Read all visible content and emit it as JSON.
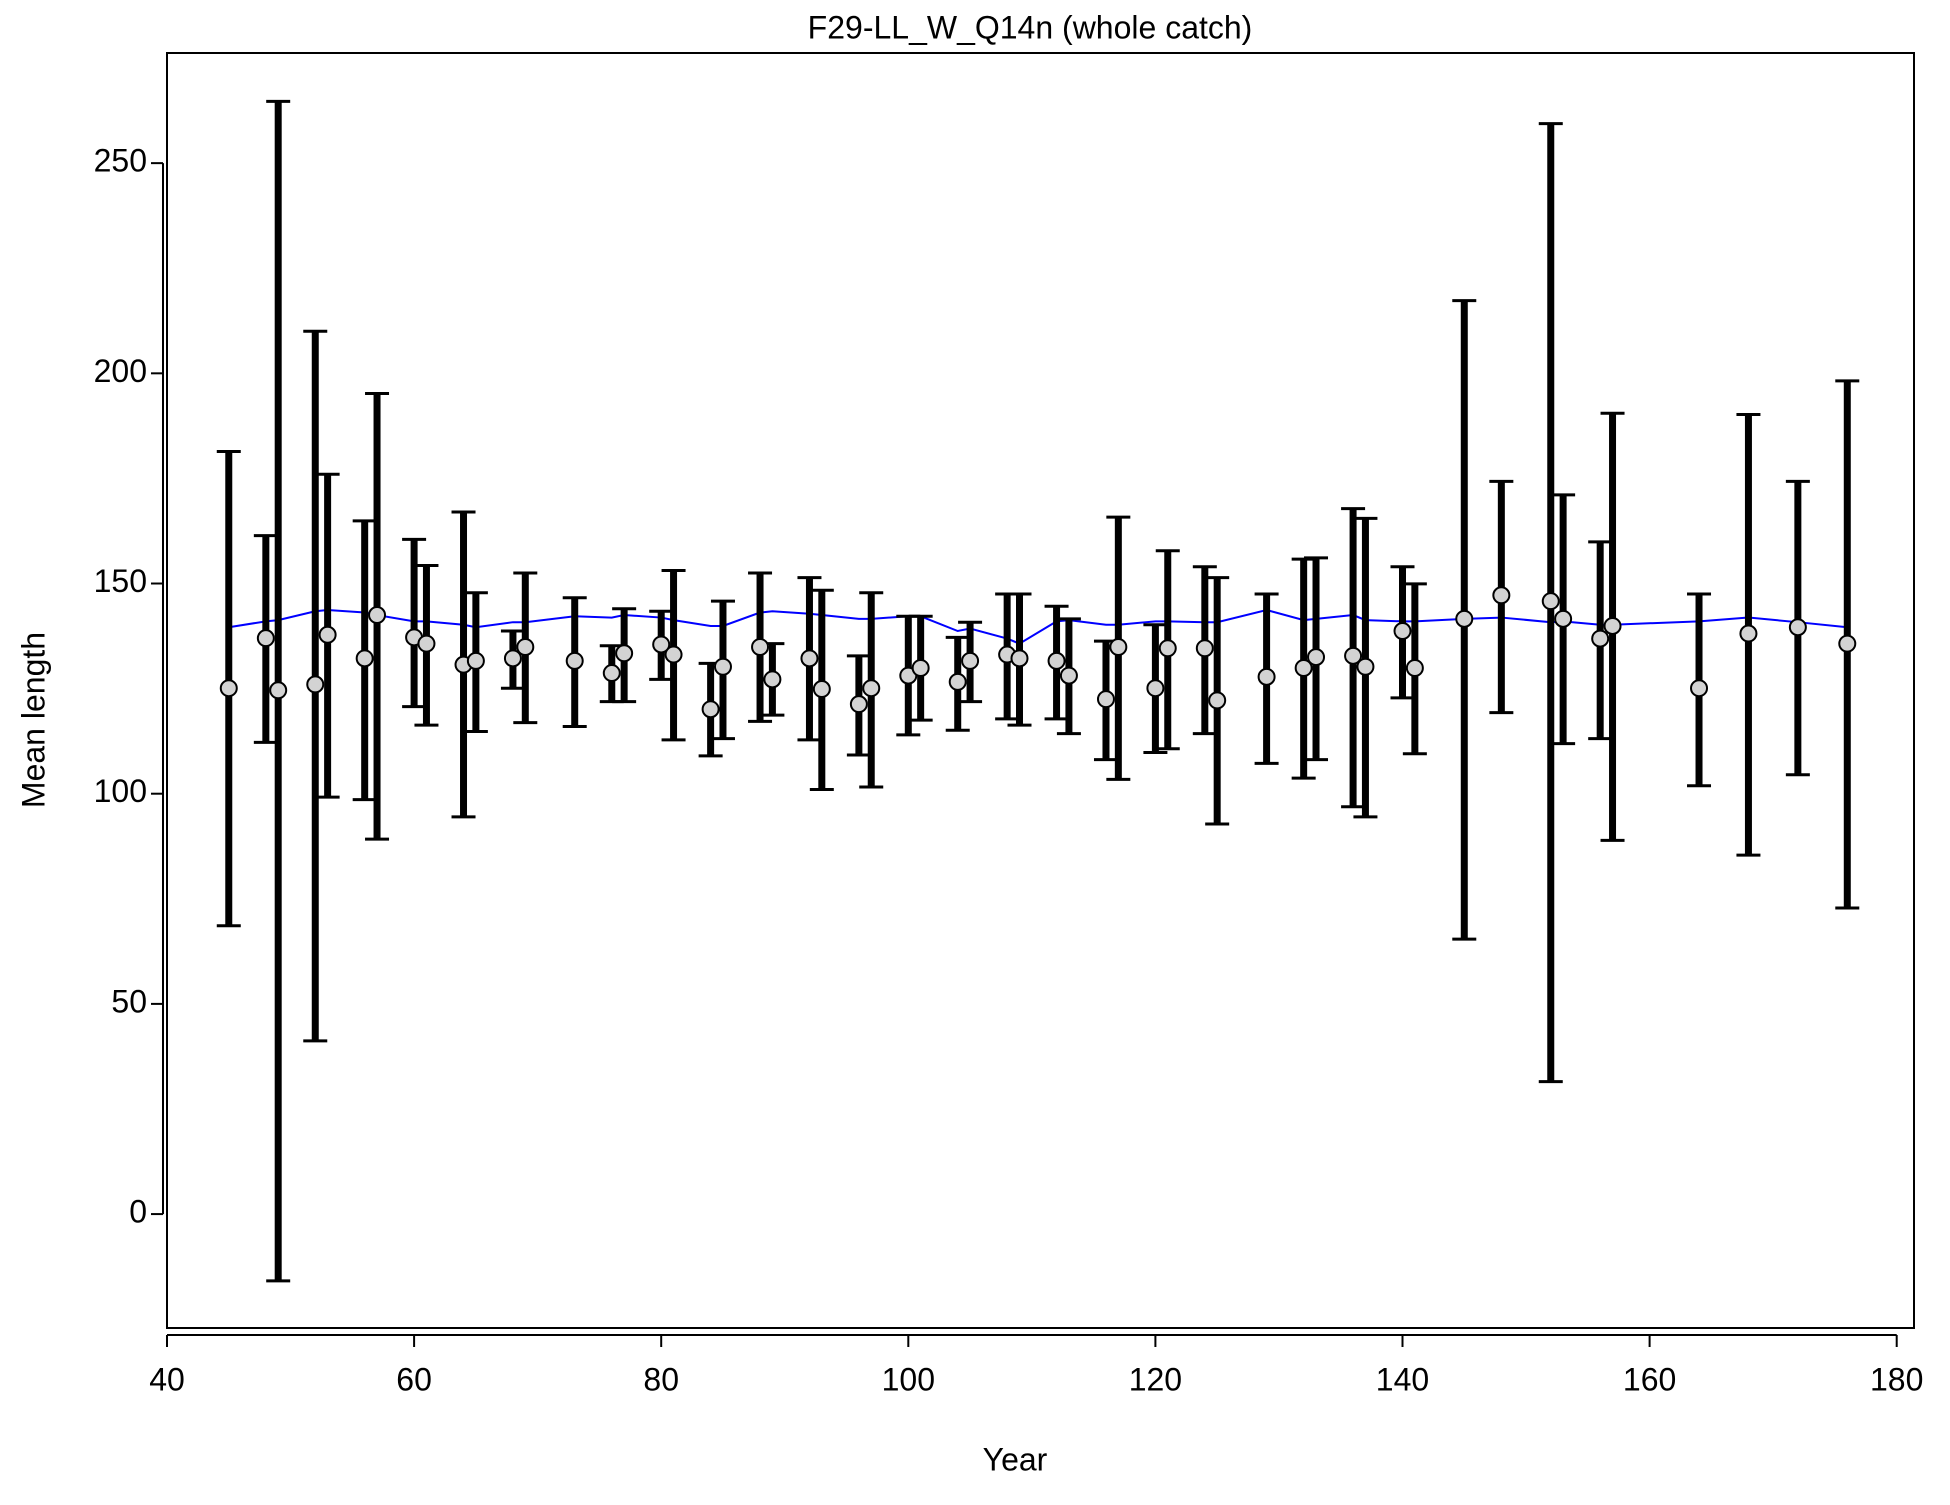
{
  "chart_data": {
    "type": "errorbar",
    "title": "F29-LL_W_Q14n (whole catch)",
    "x_label": "Year",
    "y_label": "Mean length",
    "xlim": [
      40,
      181.4
    ],
    "ylim": [
      -27.1,
      276.2
    ],
    "xticks": [
      40,
      60,
      80,
      100,
      120,
      140,
      160,
      180
    ],
    "yticks": [
      0,
      50,
      100,
      150,
      200,
      250
    ],
    "x": [
      45,
      48,
      49,
      52,
      53,
      56,
      57,
      60,
      61,
      64,
      65,
      68,
      69,
      73,
      76,
      77,
      80,
      81,
      84,
      85,
      88,
      89,
      92,
      93,
      96,
      97,
      100,
      101,
      104,
      105,
      108,
      109,
      112,
      113,
      116,
      117,
      120,
      121,
      124,
      125,
      129,
      132,
      133,
      136,
      137,
      140,
      141,
      145,
      148,
      152,
      153,
      156,
      157,
      164,
      168,
      172,
      176
    ],
    "series": [
      {
        "color": "#d3d3d3",
        "bar_color": "#000000",
        "values": [
          125.1,
          137,
          124.6,
          126,
          137.8,
          132.2,
          142.5,
          137.2,
          135.7,
          130.7,
          131.6,
          132.2,
          134.9,
          131.6,
          128.7,
          133.4,
          135.5,
          133.1,
          120.1,
          130.2,
          134.9,
          127.2,
          132.2,
          124.9,
          121.3,
          125.1,
          128.1,
          129.9,
          126.6,
          131.6,
          133.1,
          132.2,
          131.6,
          128.1,
          122.5,
          134.9,
          125.1,
          134.6,
          134.6,
          122.2,
          127.8,
          129.9,
          132.5,
          132.8,
          130.2,
          138.7,
          129.9,
          141.6,
          147.2,
          145.8,
          141.6,
          136.9,
          139.9,
          125.1,
          138.1,
          139.6,
          135.7
        ],
        "lower": [
          68.6,
          112.2,
          -15.9,
          41.2,
          99.2,
          98.6,
          89.2,
          120.7,
          116.3,
          94.5,
          114.8,
          125.1,
          116.9,
          116,
          121.9,
          121.9,
          127.2,
          112.8,
          109,
          113.1,
          117.2,
          118.7,
          112.8,
          101,
          109.2,
          101.6,
          114,
          117.5,
          115.1,
          121.9,
          117.8,
          116.3,
          117.8,
          114.3,
          108.1,
          103.4,
          109.8,
          110.7,
          114.3,
          92.8,
          107.2,
          103.7,
          108.1,
          96.9,
          94.5,
          122.8,
          109.5,
          65.4,
          119.3,
          31.5,
          111.9,
          113.1,
          88.9,
          101.9,
          85.4,
          104.5,
          72.8
        ],
        "upper": [
          181.4,
          161.4,
          264.7,
          210,
          176,
          164.9,
          195.2,
          160.5,
          154.3,
          167,
          147.8,
          138.7,
          152.5,
          146.6,
          135.2,
          144,
          143.4,
          153.1,
          131,
          145.8,
          152.5,
          135.7,
          151.4,
          148.4,
          132.8,
          147.8,
          142.2,
          142.2,
          137.2,
          140.8,
          147.5,
          147.5,
          144.6,
          141.6,
          136.3,
          165.8,
          140.2,
          157.8,
          154,
          151.4,
          147.5,
          155.8,
          156.1,
          167.8,
          165.5,
          154,
          149.9,
          217.3,
          174.3,
          259.4,
          171.1,
          159.9,
          190.5,
          147.5,
          190.2,
          174.3,
          198.2
        ]
      },
      {
        "type": "line",
        "color": "#0000ff",
        "values": [
          139.6,
          141,
          141.3,
          143.4,
          143.7,
          143.1,
          142.5,
          141,
          141,
          140.2,
          139.6,
          140.8,
          140.8,
          142.2,
          141.9,
          142.5,
          141.9,
          141.3,
          139.9,
          139.9,
          143.1,
          143.4,
          142.8,
          142.5,
          141.6,
          141.6,
          142.2,
          142.2,
          138.7,
          139.3,
          136.9,
          135.7,
          141,
          141.3,
          140.2,
          140.2,
          141,
          141,
          140.8,
          140.8,
          143.7,
          141.3,
          141.6,
          142.5,
          141.3,
          141,
          141,
          141.6,
          141.9,
          140.8,
          141,
          140.2,
          140.2,
          141,
          141.9,
          140.8,
          139.6
        ]
      }
    ]
  }
}
